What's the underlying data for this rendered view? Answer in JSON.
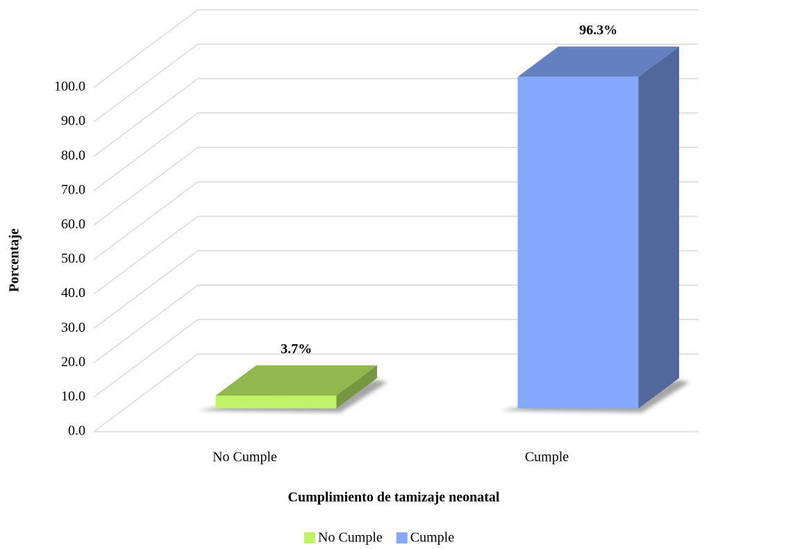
{
  "chart_data": {
    "type": "bar3d",
    "y_axis_label": "Porcentaje",
    "x_axis_label": "Cumplimiento de tamizaje neonatal",
    "categories": [
      "No Cumple",
      "Cumple"
    ],
    "values": [
      3.7,
      96.3
    ],
    "value_labels": [
      "3.7%",
      "96.3%"
    ],
    "colors": [
      "#bff267",
      "#84a8fd"
    ],
    "ylim": [
      0,
      100
    ],
    "yticks": [
      {
        "value": 0,
        "label": "0.0"
      },
      {
        "value": 10,
        "label": "10.0"
      },
      {
        "value": 20,
        "label": "20.0"
      },
      {
        "value": 30,
        "label": "30.0"
      },
      {
        "value": 40,
        "label": "40.0"
      },
      {
        "value": 50,
        "label": "50.0"
      },
      {
        "value": 60,
        "label": "60.0"
      },
      {
        "value": 70,
        "label": "70.0"
      },
      {
        "value": 80,
        "label": "80.0"
      },
      {
        "value": 90,
        "label": "90.0"
      },
      {
        "value": 100,
        "label": "100.0"
      }
    ],
    "grid": true,
    "legend": "bottom"
  }
}
